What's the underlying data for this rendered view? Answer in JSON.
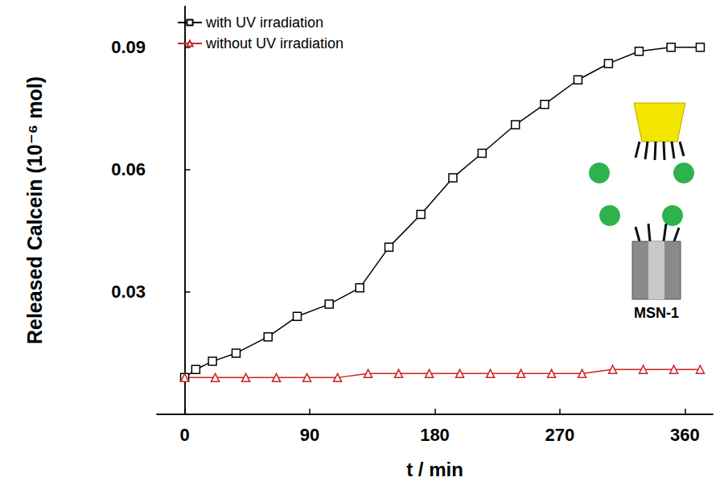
{
  "chart_data": {
    "type": "line",
    "x_label": "t / min",
    "y_label": "Released Calcein (10⁻⁶ mol)",
    "annotations": [
      "MSN-1"
    ],
    "xlim": [
      -20,
      380
    ],
    "xticks": [
      0,
      90,
      180,
      270,
      360
    ],
    "ylim": [
      0,
      0.1
    ],
    "yticks": [
      0.03,
      0.06,
      0.09
    ],
    "grid": false,
    "legend": "upper left",
    "series": [
      {
        "name": "with UV irradiation",
        "color": "#000000",
        "marker": "square",
        "line_style": "solid",
        "x": [
          0,
          8,
          20,
          37,
          60,
          81,
          104,
          126,
          147,
          170,
          193,
          214,
          238,
          259,
          283,
          305,
          327,
          350,
          371
        ],
        "values": [
          0.009,
          0.011,
          0.013,
          0.015,
          0.019,
          0.024,
          0.027,
          0.031,
          0.041,
          0.049,
          0.058,
          0.064,
          0.071,
          0.076,
          0.082,
          0.086,
          0.089,
          0.09,
          0.09
        ]
      },
      {
        "name": "without UV irradiation",
        "color": "#cc2222",
        "marker": "triangle",
        "line_style": "solid",
        "x": [
          0,
          22,
          44,
          66,
          88,
          110,
          132,
          154,
          176,
          198,
          220,
          242,
          264,
          286,
          308,
          330,
          352,
          371
        ],
        "values": [
          0.009,
          0.009,
          0.009,
          0.009,
          0.009,
          0.009,
          0.01,
          0.01,
          0.01,
          0.01,
          0.01,
          0.01,
          0.01,
          0.01,
          0.011,
          0.011,
          0.011,
          0.011
        ]
      }
    ]
  }
}
